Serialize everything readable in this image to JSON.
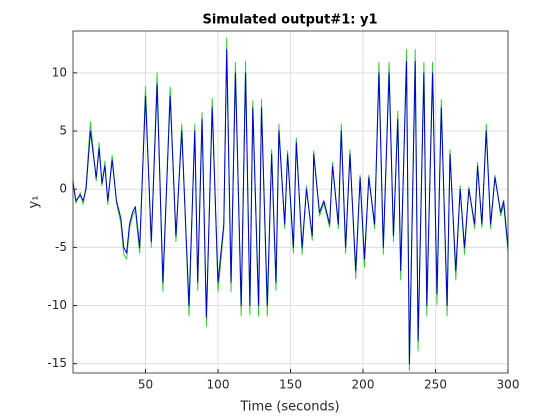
{
  "chart_data": {
    "type": "line",
    "title": "Simulated output#1: y1",
    "xlabel": "Time (seconds)",
    "ylabel": "y₁",
    "x": [
      0,
      2,
      5,
      7,
      9,
      12,
      14,
      16,
      18,
      20,
      22,
      24,
      27,
      30,
      33,
      35,
      37,
      39,
      41,
      43,
      46,
      50,
      54,
      58,
      62,
      67,
      71,
      75,
      80,
      84,
      86,
      89,
      92,
      96,
      100,
      104,
      106,
      109,
      112,
      116,
      119,
      122,
      124,
      128,
      130,
      134,
      137,
      140,
      142,
      146,
      148,
      152,
      154,
      158,
      161,
      165,
      166,
      170,
      173,
      177,
      179,
      183,
      185,
      188,
      191,
      195,
      198,
      201,
      204,
      208,
      211,
      214,
      218,
      221,
      224,
      226,
      230,
      232,
      236,
      238,
      242,
      244,
      248,
      251,
      254,
      258,
      260,
      264,
      267,
      270,
      273,
      277,
      279,
      282,
      285,
      288,
      291,
      295,
      297,
      300
    ],
    "series": [
      {
        "color": "#33cc33",
        "values": [
          0.8,
          -1.2,
          -0.3,
          -1.3,
          0.3,
          5.8,
          3.3,
          0.7,
          4,
          0.3,
          2.4,
          -1.3,
          2.9,
          -1.2,
          -2.9,
          -5.6,
          -6,
          -3.3,
          -2.3,
          -1.8,
          -5.5,
          8.8,
          -5,
          10,
          -8.8,
          8.8,
          -4.5,
          5.6,
          -10.9,
          5.6,
          -8.7,
          6.6,
          -11.8,
          7.8,
          -8.8,
          -3.4,
          13,
          -8.8,
          10.9,
          -10.9,
          11,
          -10.8,
          7.6,
          -10.9,
          7.7,
          -10.9,
          3.4,
          -8.7,
          5.6,
          -3.4,
          3.3,
          -5.5,
          4.4,
          -5.6,
          0.3,
          -4.4,
          3.3,
          -2.3,
          -1.2,
          -3.3,
          2.3,
          -3.4,
          5.6,
          -5.5,
          3.4,
          -7.7,
          1.2,
          -6.7,
          1.2,
          -3.4,
          10.9,
          -5.6,
          10.9,
          -4.5,
          6.7,
          -7.8,
          12,
          -15.6,
          12,
          -13.9,
          10.9,
          -10.9,
          10.9,
          -9.9,
          7.7,
          -10.9,
          3.4,
          -7.8,
          0.3,
          -5.6,
          0.2,
          -3.4,
          2.3,
          -3.3,
          5.6,
          -3.4,
          1.2,
          -2.3,
          -1.3,
          -5.4
        ]
      },
      {
        "color": "#0000cc",
        "values": [
          0.5,
          -1,
          -0.5,
          -1,
          0,
          5,
          3,
          1,
          3.5,
          0.5,
          2,
          -1,
          2.5,
          -1,
          -2.5,
          -5,
          -5.5,
          -3,
          -2,
          -1.5,
          -5,
          8,
          -4.5,
          9,
          -8,
          8,
          -4,
          5,
          -10,
          5,
          -8,
          6,
          -11,
          7,
          -8,
          -3,
          12,
          -8,
          10,
          -10,
          10,
          -10,
          7,
          -10,
          7,
          -10,
          3,
          -8,
          5,
          -3,
          3,
          -5,
          4,
          -5,
          0,
          -4,
          3,
          -2,
          -1,
          -3,
          2,
          -3,
          5,
          -5,
          3,
          -7,
          1,
          -6,
          1,
          -3,
          10,
          -5,
          10,
          -4,
          6,
          -7,
          11,
          -15,
          11,
          -13,
          10,
          -10,
          10,
          -9,
          7,
          -10,
          3,
          -7,
          0,
          -5,
          0,
          -3,
          2,
          -3,
          5,
          -3,
          1,
          -2,
          -1,
          -5
        ]
      }
    ],
    "xlim": [
      0,
      300
    ],
    "xticks": [
      50,
      100,
      150,
      200,
      250,
      300
    ],
    "ylim": [
      -15.8,
      13.6
    ],
    "yticks": [
      -15,
      -10,
      -5,
      0,
      5,
      10
    ],
    "grid": true
  }
}
